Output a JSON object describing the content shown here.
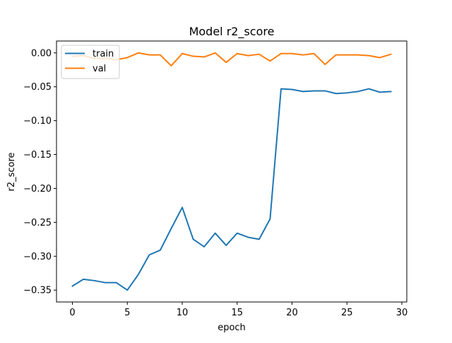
{
  "chart_data": {
    "type": "line",
    "title": "Model r2_score",
    "xlabel": "epoch",
    "ylabel": "r2_score",
    "xlim": [
      -1.45,
      30.45
    ],
    "ylim": [
      -0.3675,
      0.0175
    ],
    "xticks": [
      0,
      5,
      10,
      15,
      20,
      25,
      30
    ],
    "xtick_labels": [
      "0",
      "5",
      "10",
      "15",
      "20",
      "25",
      "30"
    ],
    "yticks": [
      0.0,
      -0.05,
      -0.1,
      -0.15,
      -0.2,
      -0.25,
      -0.3,
      -0.35
    ],
    "ytick_labels": [
      "0.00",
      "−0.05",
      "−0.10",
      "−0.15",
      "−0.20",
      "−0.25",
      "−0.30",
      "−0.35"
    ],
    "grid": false,
    "legend_position": "top-left",
    "x": [
      0,
      1,
      2,
      3,
      4,
      5,
      6,
      7,
      8,
      9,
      10,
      11,
      12,
      13,
      14,
      15,
      16,
      17,
      18,
      19,
      20,
      21,
      22,
      23,
      24,
      25,
      26,
      27,
      28,
      29
    ],
    "series": [
      {
        "name": "train",
        "color": "#1f77b4",
        "values": [
          -0.344,
          -0.334,
          -0.336,
          -0.339,
          -0.339,
          -0.35,
          -0.327,
          -0.298,
          -0.291,
          -0.259,
          -0.228,
          -0.275,
          -0.286,
          -0.266,
          -0.284,
          -0.266,
          -0.272,
          -0.275,
          -0.245,
          -0.053,
          -0.054,
          -0.057,
          -0.056,
          -0.056,
          -0.06,
          -0.059,
          -0.057,
          -0.053,
          -0.058,
          -0.057
        ]
      },
      {
        "name": "val",
        "color": "#ff7f0e",
        "values": [
          -0.005,
          -0.004,
          -0.008,
          -0.008,
          -0.01,
          -0.007,
          0.0,
          -0.003,
          -0.003,
          -0.019,
          -0.001,
          -0.005,
          -0.006,
          0.0,
          -0.014,
          -0.001,
          -0.004,
          -0.002,
          -0.012,
          -0.001,
          -0.001,
          -0.003,
          -0.001,
          -0.017,
          -0.003,
          -0.003,
          -0.003,
          -0.004,
          -0.007,
          -0.002
        ]
      }
    ]
  }
}
